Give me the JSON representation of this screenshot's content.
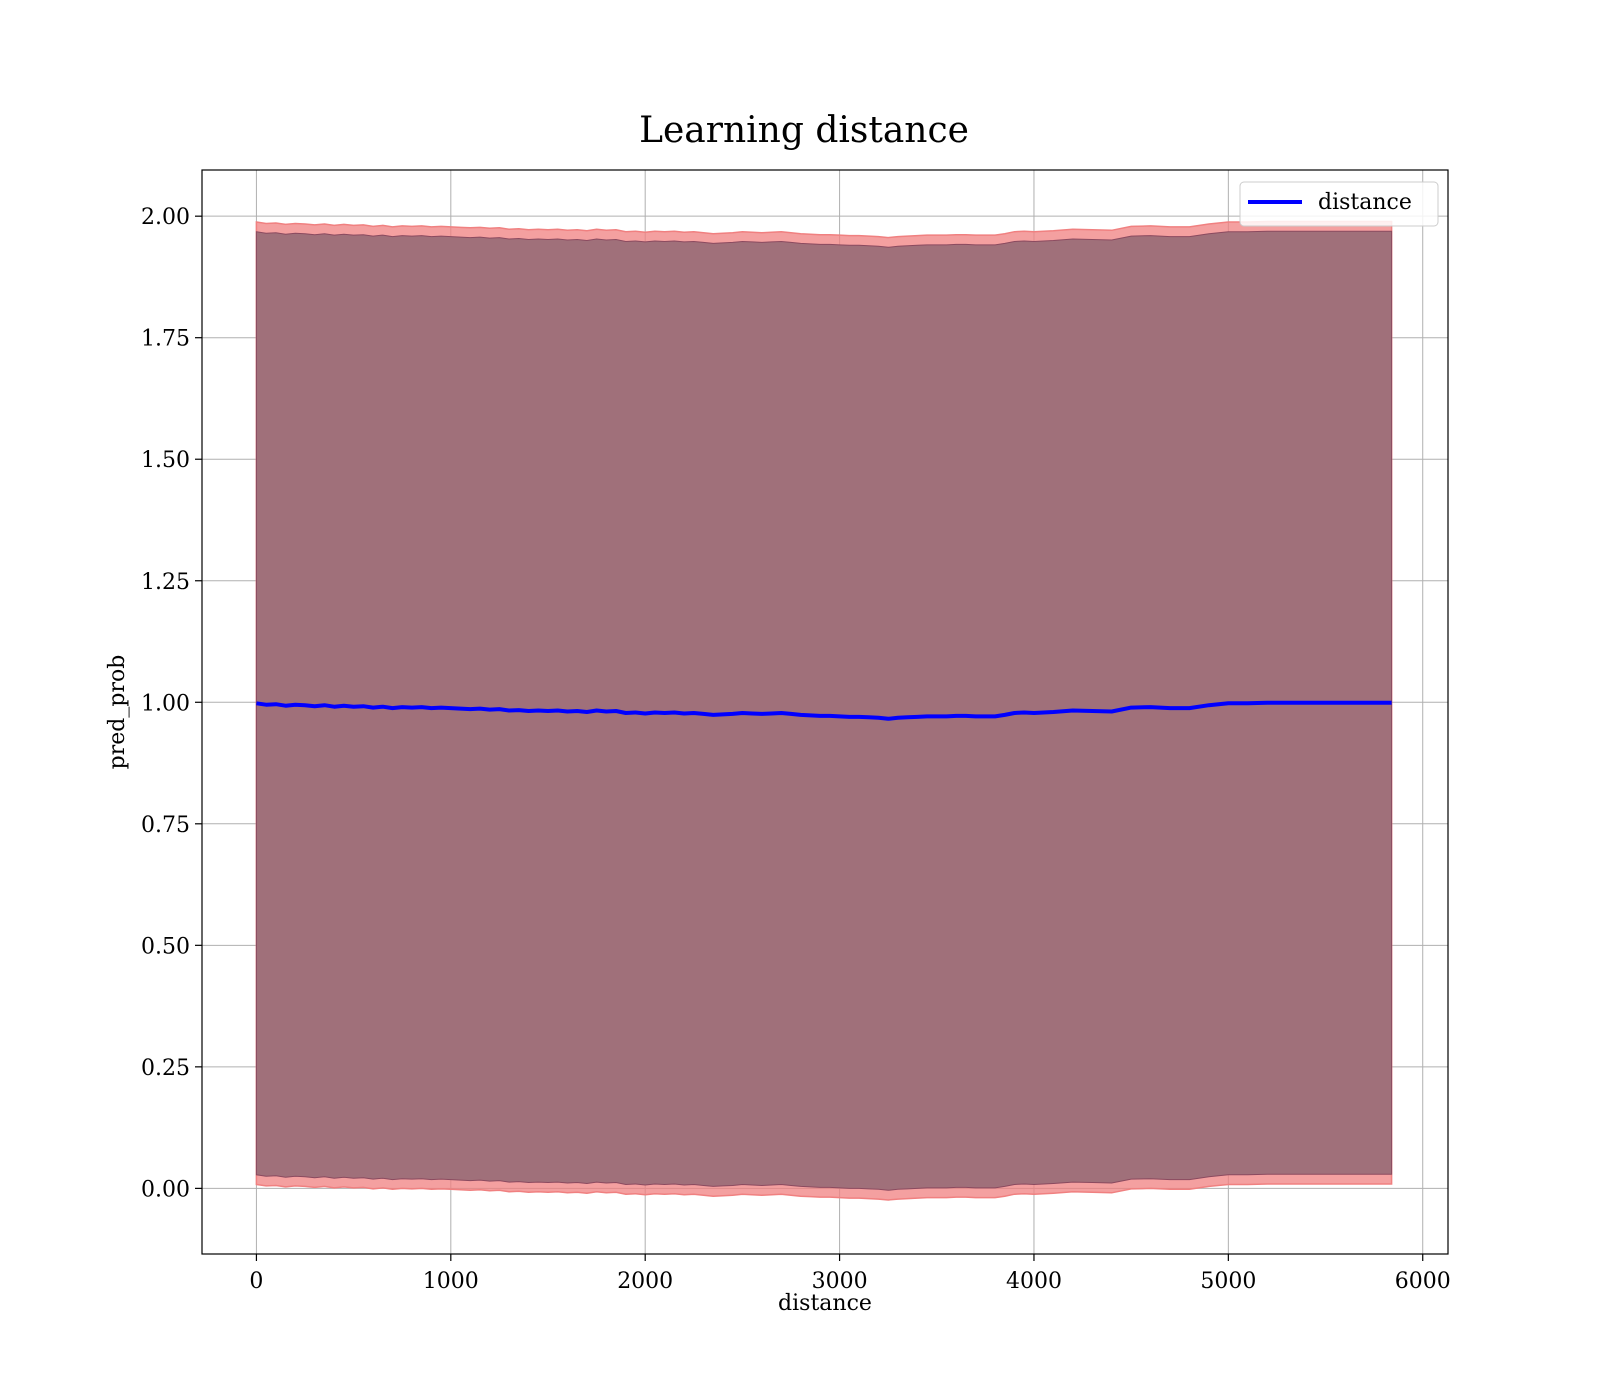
{
  "chart_data": {
    "type": "line",
    "title": "Learning distance",
    "xlabel": "distance",
    "ylabel": "pred_prob",
    "xlim": [
      -280,
      6130
    ],
    "ylim": [
      -0.135,
      2.095
    ],
    "xticks": [
      0,
      1000,
      2000,
      3000,
      4000,
      5000,
      6000
    ],
    "xtick_labels": [
      "0",
      "1000",
      "2000",
      "3000",
      "4000",
      "5000",
      "6000"
    ],
    "yticks": [
      0.0,
      0.25,
      0.5,
      0.75,
      1.0,
      1.25,
      1.5,
      1.75,
      2.0
    ],
    "ytick_labels": [
      "0.00",
      "0.25",
      "0.50",
      "0.75",
      "1.00",
      "1.25",
      "1.50",
      "1.75",
      "2.00"
    ],
    "grid": true,
    "legend": {
      "position": "top-right",
      "entries": [
        "distance"
      ]
    },
    "colors": {
      "line": "#0000ff",
      "band_outer": "#f08080",
      "band_inner": "#8b4a5f",
      "band_fill": "#a0707a",
      "grid": "#b0b0b0"
    },
    "series": [
      {
        "name": "distance",
        "x": [
          0,
          50,
          100,
          150,
          200,
          250,
          300,
          350,
          400,
          450,
          500,
          550,
          600,
          650,
          700,
          750,
          800,
          850,
          900,
          950,
          1000,
          1050,
          1100,
          1150,
          1200,
          1250,
          1300,
          1350,
          1400,
          1450,
          1500,
          1550,
          1600,
          1650,
          1700,
          1750,
          1800,
          1850,
          1900,
          1950,
          2000,
          2050,
          2100,
          2150,
          2200,
          2250,
          2300,
          2350,
          2400,
          2450,
          2500,
          2550,
          2600,
          2650,
          2700,
          2750,
          2800,
          2850,
          2900,
          2950,
          3000,
          3050,
          3100,
          3150,
          3200,
          3250,
          3300,
          3350,
          3400,
          3450,
          3500,
          3550,
          3600,
          3650,
          3700,
          3750,
          3800,
          3850,
          3900,
          3950,
          4000,
          4100,
          4200,
          4300,
          4400,
          4500,
          4600,
          4700,
          4800,
          4900,
          5000,
          5100,
          5200,
          5300,
          5400,
          5500,
          5600,
          5700,
          5840
        ],
        "y": [
          0.998,
          0.995,
          0.996,
          0.993,
          0.995,
          0.994,
          0.992,
          0.994,
          0.991,
          0.993,
          0.991,
          0.992,
          0.989,
          0.991,
          0.988,
          0.99,
          0.989,
          0.99,
          0.988,
          0.989,
          0.988,
          0.987,
          0.986,
          0.987,
          0.985,
          0.986,
          0.983,
          0.984,
          0.982,
          0.983,
          0.982,
          0.983,
          0.981,
          0.982,
          0.98,
          0.983,
          0.981,
          0.982,
          0.978,
          0.979,
          0.977,
          0.979,
          0.978,
          0.979,
          0.977,
          0.978,
          0.976,
          0.974,
          0.975,
          0.976,
          0.978,
          0.977,
          0.976,
          0.977,
          0.978,
          0.976,
          0.974,
          0.973,
          0.972,
          0.972,
          0.971,
          0.97,
          0.97,
          0.969,
          0.968,
          0.966,
          0.968,
          0.969,
          0.97,
          0.971,
          0.971,
          0.971,
          0.972,
          0.972,
          0.971,
          0.971,
          0.971,
          0.974,
          0.978,
          0.979,
          0.978,
          0.98,
          0.983,
          0.982,
          0.981,
          0.989,
          0.99,
          0.988,
          0.988,
          0.994,
          0.998,
          0.998,
          0.999,
          0.999,
          0.999,
          0.999,
          0.999,
          0.999,
          0.999
        ]
      }
    ],
    "band": {
      "description_of_bounds": "mean ± 1.0",
      "outer_offset": 0.99,
      "inner_offset": 0.97
    }
  }
}
